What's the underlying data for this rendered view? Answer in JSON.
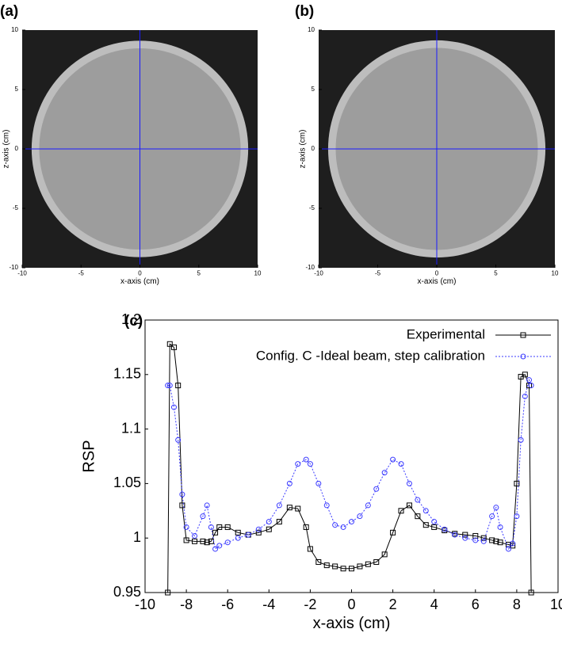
{
  "chart_data": [
    {
      "type": "image",
      "panel": "(a)",
      "xlabel": "x-axis (cm)",
      "ylabel": "z-axis (cm)",
      "xlim": [
        -10,
        10
      ],
      "ylim": [
        -10,
        10
      ],
      "xticks": [
        -10,
        -5,
        0,
        5,
        10
      ],
      "yticks": [
        -10,
        -5,
        0,
        5,
        10
      ],
      "crosshair_color": "#1a1aff"
    },
    {
      "type": "image",
      "panel": "(b)",
      "xlabel": "x-axis (cm)",
      "ylabel": "z-axis (cm)",
      "xlim": [
        -10,
        10
      ],
      "ylim": [
        -10,
        10
      ],
      "xticks": [
        -10,
        -5,
        0,
        5,
        10
      ],
      "yticks": [
        -10,
        -5,
        0,
        5,
        10
      ],
      "crosshair_color": "#1a1aff"
    },
    {
      "type": "line",
      "panel": "(c)",
      "xlabel": "x-axis (cm)",
      "ylabel": "RSP",
      "xlim": [
        -10,
        10
      ],
      "ylim": [
        0.95,
        1.2
      ],
      "xticks": [
        -10,
        -8,
        -6,
        -4,
        -2,
        0,
        2,
        4,
        6,
        8,
        10
      ],
      "yticks": [
        0.95,
        1,
        1.05,
        1.1,
        1.15,
        1.2
      ],
      "legend": "upper right",
      "x": [
        -8.9,
        -8.8,
        -8.6,
        -8.4,
        -8.2,
        -8.0,
        -7.6,
        -7.2,
        -7.0,
        -6.8,
        -6.6,
        -6.4,
        -6,
        -5.5,
        -5,
        -4.5,
        -4,
        -3.5,
        -3,
        -2.6,
        -2.2,
        -2,
        -1.6,
        -1.2,
        -0.8,
        -0.4,
        0,
        0.4,
        0.8,
        1.2,
        1.6,
        2,
        2.4,
        2.8,
        3.2,
        3.6,
        4,
        4.5,
        5,
        5.5,
        6,
        6.4,
        6.8,
        7,
        7.2,
        7.6,
        7.8,
        8,
        8.2,
        8.4,
        8.6,
        8.7
      ],
      "series": [
        {
          "name": "Experimental",
          "color": "#000000",
          "marker": "square",
          "values": [
            0.95,
            1.178,
            1.175,
            1.14,
            1.03,
            0.998,
            0.997,
            0.997,
            0.996,
            0.997,
            1.005,
            1.01,
            1.01,
            1.005,
            1.003,
            1.005,
            1.008,
            1.015,
            1.028,
            1.027,
            1.01,
            0.99,
            0.978,
            0.975,
            0.974,
            0.972,
            0.972,
            0.974,
            0.976,
            0.978,
            0.985,
            1.005,
            1.025,
            1.03,
            1.02,
            1.012,
            1.01,
            1.007,
            1.004,
            1.003,
            1.002,
            1.0,
            0.998,
            0.997,
            0.996,
            0.994,
            0.993,
            1.05,
            1.148,
            1.15,
            1.14,
            0.95
          ]
        },
        {
          "name": "Config. C -Ideal beam, step calibration",
          "color": "#3b3bff",
          "marker": "circle",
          "dashed": true,
          "values": [
            1.14,
            1.14,
            1.12,
            1.09,
            1.04,
            1.01,
            1.002,
            1.02,
            1.03,
            1.01,
            0.99,
            0.993,
            0.996,
            1.0,
            1.003,
            1.008,
            1.015,
            1.03,
            1.05,
            1.068,
            1.072,
            1.068,
            1.05,
            1.03,
            1.012,
            1.01,
            1.015,
            1.02,
            1.03,
            1.045,
            1.06,
            1.072,
            1.068,
            1.05,
            1.035,
            1.025,
            1.015,
            1.008,
            1.003,
            1.0,
            0.998,
            0.997,
            1.02,
            1.028,
            1.01,
            0.99,
            0.995,
            1.02,
            1.09,
            1.13,
            1.145,
            1.14
          ]
        }
      ]
    }
  ]
}
